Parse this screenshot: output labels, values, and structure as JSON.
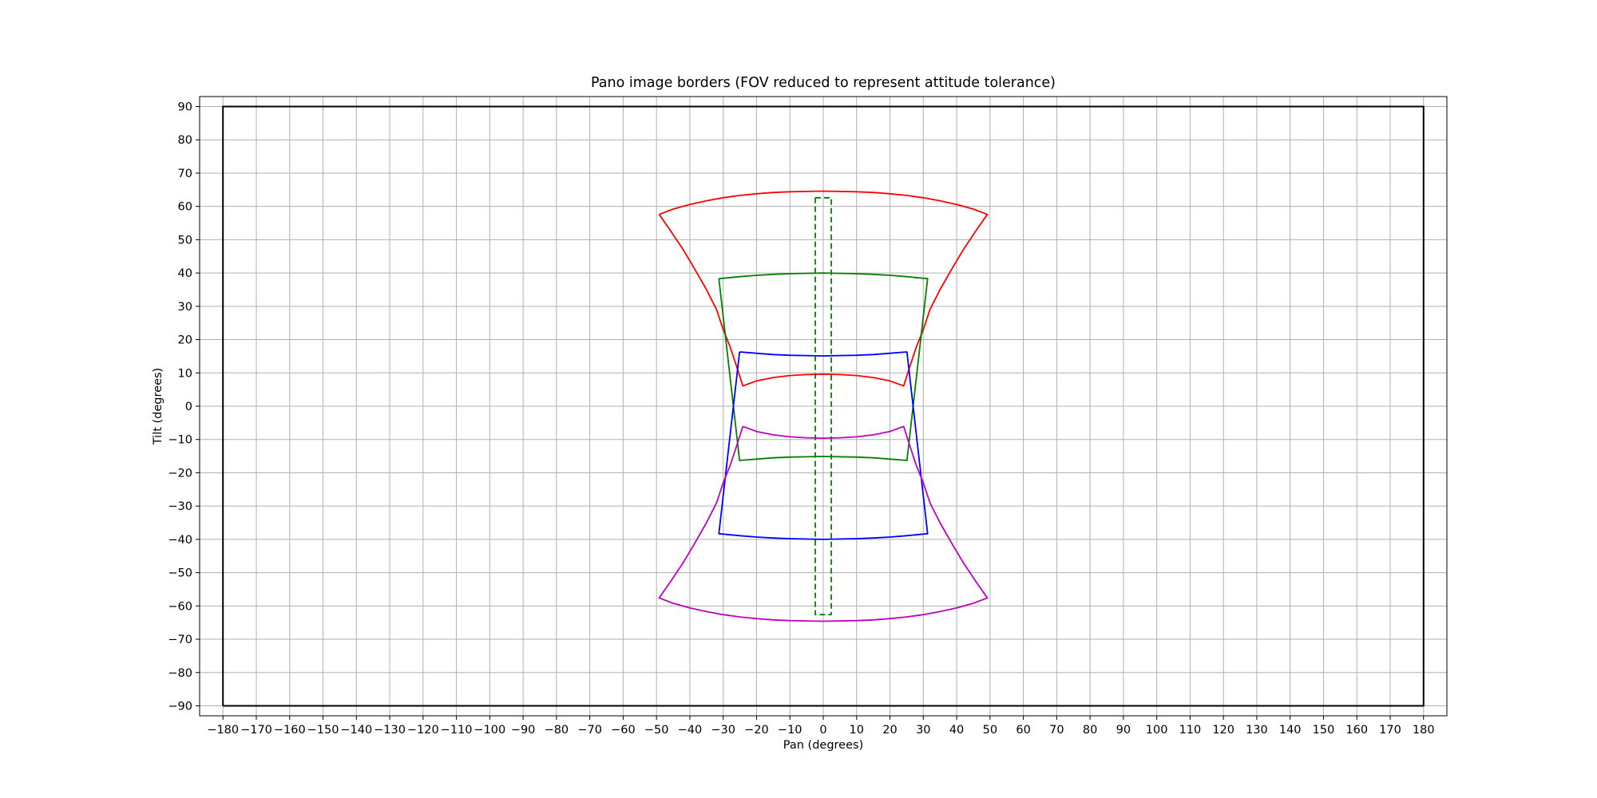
{
  "chart_data": {
    "type": "line",
    "title": "Pano image borders (FOV reduced to represent attitude tolerance)",
    "xlabel": "Pan (degrees)",
    "ylabel": "Tilt (degrees)",
    "xlim": [
      -187,
      187
    ],
    "ylim": [
      -93,
      93
    ],
    "xticks": [
      -180,
      -170,
      -160,
      -150,
      -140,
      -130,
      -120,
      -110,
      -100,
      -90,
      -80,
      -70,
      -60,
      -50,
      -40,
      -30,
      -20,
      -10,
      0,
      10,
      20,
      30,
      40,
      50,
      60,
      70,
      80,
      90,
      100,
      110,
      120,
      130,
      140,
      150,
      160,
      170,
      180
    ],
    "yticks": [
      -90,
      -80,
      -70,
      -60,
      -50,
      -40,
      -30,
      -20,
      -10,
      0,
      10,
      20,
      30,
      40,
      50,
      60,
      70,
      80,
      90
    ],
    "grid": true,
    "series": [
      {
        "color": "#000000",
        "style": "solid",
        "points": [
          [
            -180,
            -90
          ],
          [
            -180,
            90
          ],
          [
            180,
            90
          ],
          [
            180,
            -90
          ],
          [
            -180,
            -90
          ]
        ]
      },
      {
        "color": "#ff0000",
        "style": "solid",
        "points": [
          [
            -49.2,
            57.6
          ],
          [
            -45,
            59.2
          ],
          [
            -40,
            60.6
          ],
          [
            -35,
            61.7
          ],
          [
            -30,
            62.6
          ],
          [
            -25,
            63.3
          ],
          [
            -20,
            63.8
          ],
          [
            -15,
            64.2
          ],
          [
            -10,
            64.4
          ],
          [
            0,
            64.6
          ],
          [
            10,
            64.4
          ],
          [
            15,
            64.2
          ],
          [
            20,
            63.8
          ],
          [
            25,
            63.3
          ],
          [
            30,
            62.6
          ],
          [
            35,
            61.7
          ],
          [
            40,
            60.6
          ],
          [
            45,
            59.2
          ],
          [
            49.2,
            57.6
          ],
          [
            46,
            53
          ],
          [
            42,
            47
          ],
          [
            39,
            42
          ],
          [
            35,
            35
          ],
          [
            32,
            29
          ],
          [
            30,
            23
          ],
          [
            28,
            18
          ],
          [
            26,
            12
          ],
          [
            24.1,
            6.1
          ],
          [
            20,
            7.6
          ],
          [
            15,
            8.6
          ],
          [
            10,
            9.2
          ],
          [
            5,
            9.5
          ],
          [
            0,
            9.6
          ],
          [
            -5,
            9.5
          ],
          [
            -10,
            9.2
          ],
          [
            -15,
            8.6
          ],
          [
            -20,
            7.6
          ],
          [
            -24.1,
            6.1
          ],
          [
            -26,
            12
          ],
          [
            -28,
            18
          ],
          [
            -30,
            23
          ],
          [
            -32,
            29
          ],
          [
            -35,
            35
          ],
          [
            -39,
            42
          ],
          [
            -42,
            47
          ],
          [
            -46,
            53
          ],
          [
            -49.2,
            57.6
          ]
        ]
      },
      {
        "color": "#008000",
        "style": "solid",
        "points": [
          [
            -31.3,
            38.3
          ],
          [
            -25,
            38.9
          ],
          [
            -20,
            39.3
          ],
          [
            -15,
            39.6
          ],
          [
            -10,
            39.8
          ],
          [
            0,
            40
          ],
          [
            10,
            39.8
          ],
          [
            15,
            39.6
          ],
          [
            20,
            39.3
          ],
          [
            25,
            38.9
          ],
          [
            31.3,
            38.3
          ],
          [
            25.1,
            -16.3
          ],
          [
            20,
            -15.9
          ],
          [
            15,
            -15.5
          ],
          [
            10,
            -15.3
          ],
          [
            0,
            -15.1
          ],
          [
            -10,
            -15.3
          ],
          [
            -15,
            -15.5
          ],
          [
            -20,
            -15.9
          ],
          [
            -25.1,
            -16.3
          ],
          [
            -31.3,
            38.3
          ]
        ]
      },
      {
        "color": "#0000ff",
        "style": "solid",
        "points": [
          [
            -25.1,
            16.3
          ],
          [
            -20,
            15.9
          ],
          [
            -15,
            15.5
          ],
          [
            -10,
            15.3
          ],
          [
            0,
            15.1
          ],
          [
            10,
            15.3
          ],
          [
            15,
            15.5
          ],
          [
            20,
            15.9
          ],
          [
            25.1,
            16.3
          ],
          [
            31.3,
            -38.3
          ],
          [
            25,
            -38.9
          ],
          [
            20,
            -39.3
          ],
          [
            15,
            -39.6
          ],
          [
            10,
            -39.8
          ],
          [
            0,
            -40
          ],
          [
            -10,
            -39.8
          ],
          [
            -15,
            -39.6
          ],
          [
            -20,
            -39.3
          ],
          [
            -25,
            -38.9
          ],
          [
            -31.3,
            -38.3
          ],
          [
            -25.1,
            16.3
          ]
        ]
      },
      {
        "color": "#bf00bf",
        "style": "solid",
        "points": [
          [
            -24.1,
            -6.1
          ],
          [
            -20,
            -7.6
          ],
          [
            -15,
            -8.6
          ],
          [
            -10,
            -9.2
          ],
          [
            -5,
            -9.5
          ],
          [
            0,
            -9.6
          ],
          [
            5,
            -9.5
          ],
          [
            10,
            -9.2
          ],
          [
            15,
            -8.6
          ],
          [
            20,
            -7.6
          ],
          [
            24.1,
            -6.1
          ],
          [
            26,
            -12
          ],
          [
            28,
            -18
          ],
          [
            30,
            -23
          ],
          [
            32,
            -29
          ],
          [
            35,
            -35
          ],
          [
            39,
            -42
          ],
          [
            42,
            -47
          ],
          [
            46,
            -53
          ],
          [
            49.2,
            -57.6
          ],
          [
            45,
            -59.2
          ],
          [
            40,
            -60.6
          ],
          [
            35,
            -61.7
          ],
          [
            30,
            -62.6
          ],
          [
            25,
            -63.3
          ],
          [
            20,
            -63.8
          ],
          [
            15,
            -64.2
          ],
          [
            10,
            -64.4
          ],
          [
            0,
            -64.6
          ],
          [
            -10,
            -64.4
          ],
          [
            -15,
            -64.2
          ],
          [
            -20,
            -63.8
          ],
          [
            -25,
            -63.3
          ],
          [
            -30,
            -62.6
          ],
          [
            -35,
            -61.7
          ],
          [
            -40,
            -60.6
          ],
          [
            -45,
            -59.2
          ],
          [
            -49.2,
            -57.6
          ],
          [
            -46,
            -53
          ],
          [
            -42,
            -47
          ],
          [
            -39,
            -42
          ],
          [
            -35,
            -35
          ],
          [
            -32,
            -29
          ],
          [
            -30,
            -23
          ],
          [
            -28,
            -18
          ],
          [
            -26,
            -12
          ],
          [
            -24.1,
            -6.1
          ]
        ]
      },
      {
        "color": "#008000",
        "style": "dashed",
        "points": [
          [
            -2.4,
            62.6
          ],
          [
            2.4,
            62.6
          ],
          [
            2.4,
            -62.6
          ],
          [
            -2.4,
            -62.6
          ],
          [
            -2.4,
            62.6
          ]
        ]
      }
    ]
  }
}
